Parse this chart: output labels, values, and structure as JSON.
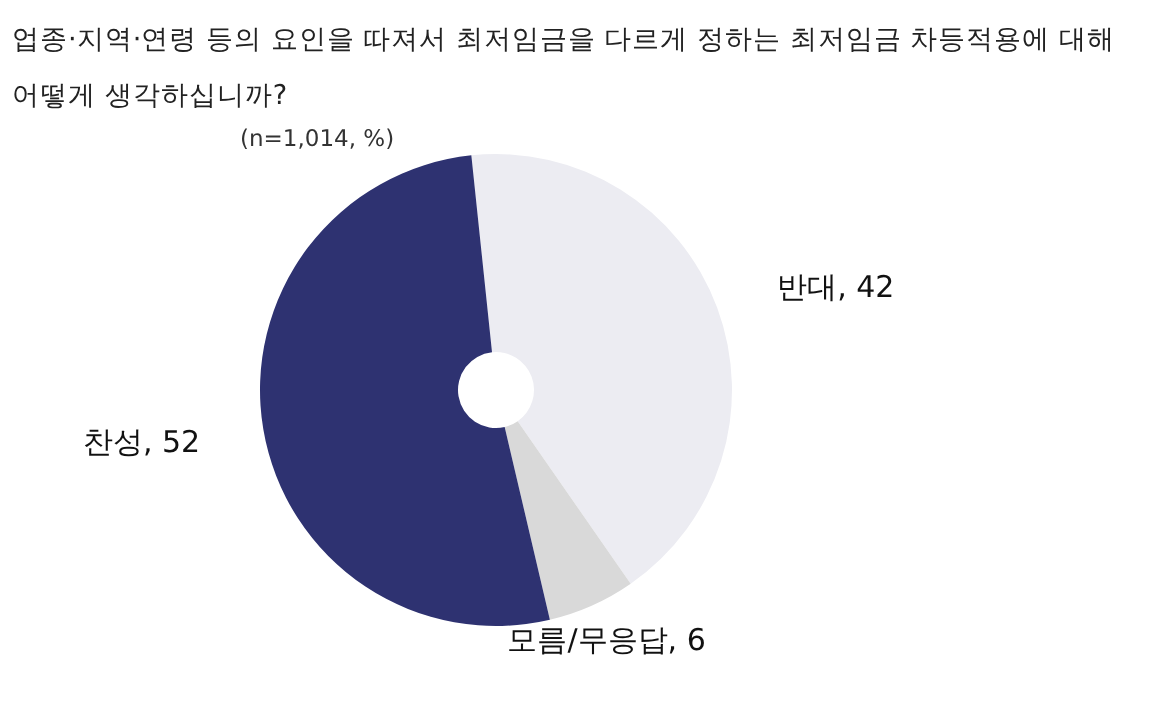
{
  "chart_data": {
    "type": "donut",
    "title": "업종·지역·연령 등의 요인을 따져서 최저임금을 다르게 정하는 최저임금 차등적용에 대해 어떻게 생각하십니까?",
    "subtitle": "(n=1,014, %)",
    "categories": [
      "반대",
      "모름/무응답",
      "찬성"
    ],
    "values": [
      42,
      6,
      52
    ],
    "colors": [
      "#ececf2",
      "#d9d9d9",
      "#2e3271"
    ],
    "value_labels": [
      ", 42",
      ", 6",
      ", 52"
    ],
    "legend": false
  }
}
